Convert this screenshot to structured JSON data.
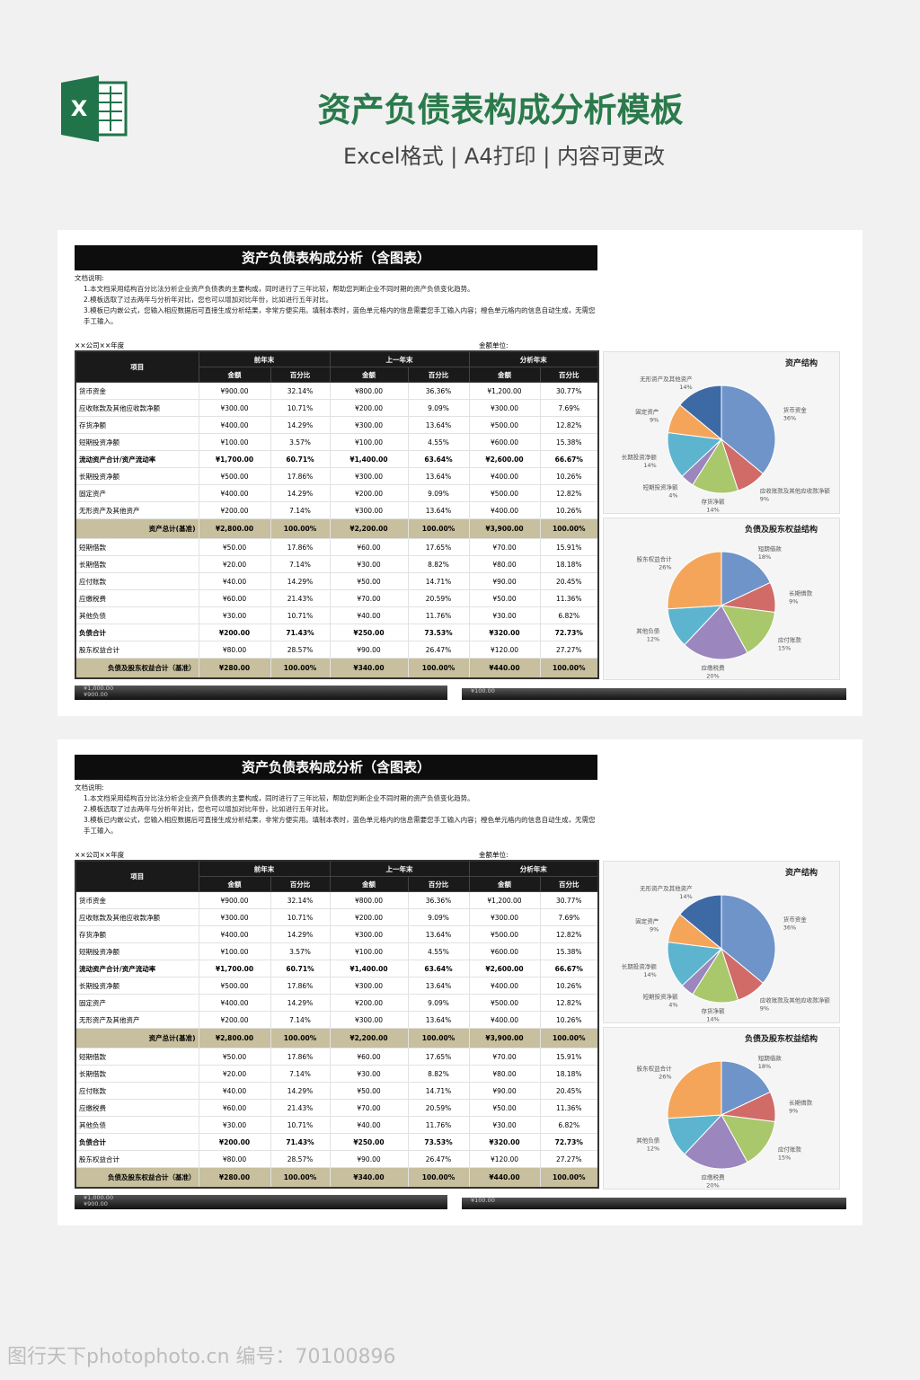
{
  "header": {
    "icon_label": "X",
    "title": "资产负债表构成分析模板",
    "subtitle": "Excel格式 | A4打印 | 内容可更改"
  },
  "sheet": {
    "title": "资产负债表构成分析（含图表）",
    "notes": [
      "文档说明:",
      "1.本文档采用结构百分比法分析企业资产负债表的主要构成，同时进行了三年比较，帮助您判断企业不同时期的资产负债变化趋势。",
      "2.模板选取了过去两年与分析年对比，您也可以增加对比年份，比如进行五年对比。",
      "3.模板已内嵌公式，您输入相应数据后可直接生成分析结果，非常方便实用。填制本表时，蓝色单元格内的信息需要您手工输入内容；橙色单元格内的信息自动生成，无需您手工输入。"
    ],
    "company": "××公司××年度",
    "unit": "金额单位:",
    "table": {
      "item_header": "项目",
      "periods": [
        "前年末",
        "上一年末",
        "分析年末"
      ],
      "subheaders": [
        "金额",
        "百分比"
      ],
      "rows": [
        {
          "label": "货币资金",
          "style": "normal",
          "cells": [
            "¥900.00",
            "32.14%",
            "¥800.00",
            "36.36%",
            "¥1,200.00",
            "30.77%"
          ]
        },
        {
          "label": "应收账款及其他应收款净额",
          "style": "normal",
          "cells": [
            "¥300.00",
            "10.71%",
            "¥200.00",
            "9.09%",
            "¥300.00",
            "7.69%"
          ]
        },
        {
          "label": "存货净额",
          "style": "normal",
          "cells": [
            "¥400.00",
            "14.29%",
            "¥300.00",
            "13.64%",
            "¥500.00",
            "12.82%"
          ]
        },
        {
          "label": "短期投资净额",
          "style": "normal",
          "cells": [
            "¥100.00",
            "3.57%",
            "¥100.00",
            "4.55%",
            "¥600.00",
            "15.38%"
          ]
        },
        {
          "label": "流动资产合计/资产流动率",
          "style": "bold",
          "cells": [
            "¥1,700.00",
            "60.71%",
            "¥1,400.00",
            "63.64%",
            "¥2,600.00",
            "66.67%"
          ]
        },
        {
          "label": "长期投资净额",
          "style": "normal",
          "cells": [
            "¥500.00",
            "17.86%",
            "¥300.00",
            "13.64%",
            "¥400.00",
            "10.26%"
          ]
        },
        {
          "label": "固定资产",
          "style": "normal",
          "cells": [
            "¥400.00",
            "14.29%",
            "¥200.00",
            "9.09%",
            "¥500.00",
            "12.82%"
          ]
        },
        {
          "label": "无形资产及其他资产",
          "style": "normal",
          "cells": [
            "¥200.00",
            "7.14%",
            "¥300.00",
            "13.64%",
            "¥400.00",
            "10.26%"
          ]
        },
        {
          "label": "资产总计(基准)",
          "style": "total",
          "cells": [
            "¥2,800.00",
            "100.00%",
            "¥2,200.00",
            "100.00%",
            "¥3,900.00",
            "100.00%"
          ]
        },
        {
          "label": "短期借款",
          "style": "normal",
          "cells": [
            "¥50.00",
            "17.86%",
            "¥60.00",
            "17.65%",
            "¥70.00",
            "15.91%"
          ]
        },
        {
          "label": "长期借款",
          "style": "normal",
          "cells": [
            "¥20.00",
            "7.14%",
            "¥30.00",
            "8.82%",
            "¥80.00",
            "18.18%"
          ]
        },
        {
          "label": "应付账款",
          "style": "normal",
          "cells": [
            "¥40.00",
            "14.29%",
            "¥50.00",
            "14.71%",
            "¥90.00",
            "20.45%"
          ]
        },
        {
          "label": "应缴税费",
          "style": "normal",
          "cells": [
            "¥60.00",
            "21.43%",
            "¥70.00",
            "20.59%",
            "¥50.00",
            "11.36%"
          ]
        },
        {
          "label": "其他负债",
          "style": "normal",
          "cells": [
            "¥30.00",
            "10.71%",
            "¥40.00",
            "11.76%",
            "¥30.00",
            "6.82%"
          ]
        },
        {
          "label": "负债合计",
          "style": "bold",
          "cells": [
            "¥200.00",
            "71.43%",
            "¥250.00",
            "73.53%",
            "¥320.00",
            "72.73%"
          ]
        },
        {
          "label": "股东权益合计",
          "style": "normal",
          "cells": [
            "¥80.00",
            "28.57%",
            "¥90.00",
            "26.47%",
            "¥120.00",
            "27.27%"
          ]
        },
        {
          "label": "负债及股东权益合计（基准）",
          "style": "total",
          "cells": [
            "¥280.00",
            "100.00%",
            "¥340.00",
            "100.00%",
            "¥440.00",
            "100.00%"
          ]
        }
      ]
    },
    "charts": [
      {
        "type": "pie",
        "title": "资产结构",
        "categories": [
          "货币资金",
          "应收账款及其他应收款净额",
          "存货净额",
          "短期投资净额",
          "长期投资净额",
          "固定资产",
          "无形资产及其他资产"
        ],
        "values": [
          36,
          9,
          14,
          4,
          14,
          9,
          14
        ],
        "value_labels": [
          "36%",
          "9%",
          "14%",
          "4%",
          "14%",
          "9%",
          "14%"
        ],
        "colors": [
          "#6f94c9",
          "#d06b68",
          "#a9c76b",
          "#9b86bd",
          "#5db4cf",
          "#f5a55a",
          "#3d6aa4"
        ]
      },
      {
        "type": "pie",
        "title": "负债及股东权益结构",
        "categories": [
          "短期借款",
          "长期借款",
          "应付账款",
          "应缴税费",
          "其他负债",
          "股东权益合计"
        ],
        "values": [
          18,
          9,
          15,
          20,
          12,
          26
        ],
        "value_labels": [
          "18%",
          "9%",
          "15%",
          "20%",
          "12%",
          "26%"
        ],
        "colors": [
          "#6f94c9",
          "#d06b68",
          "#a9c76b",
          "#9b86bd",
          "#5db4cf",
          "#f5a55a"
        ]
      }
    ],
    "strips": [
      [
        "¥1,000.00",
        "¥900.00"
      ],
      [
        "¥100.00"
      ]
    ]
  },
  "watermark": "图行天下photophoto.cn 编号：70100896"
}
